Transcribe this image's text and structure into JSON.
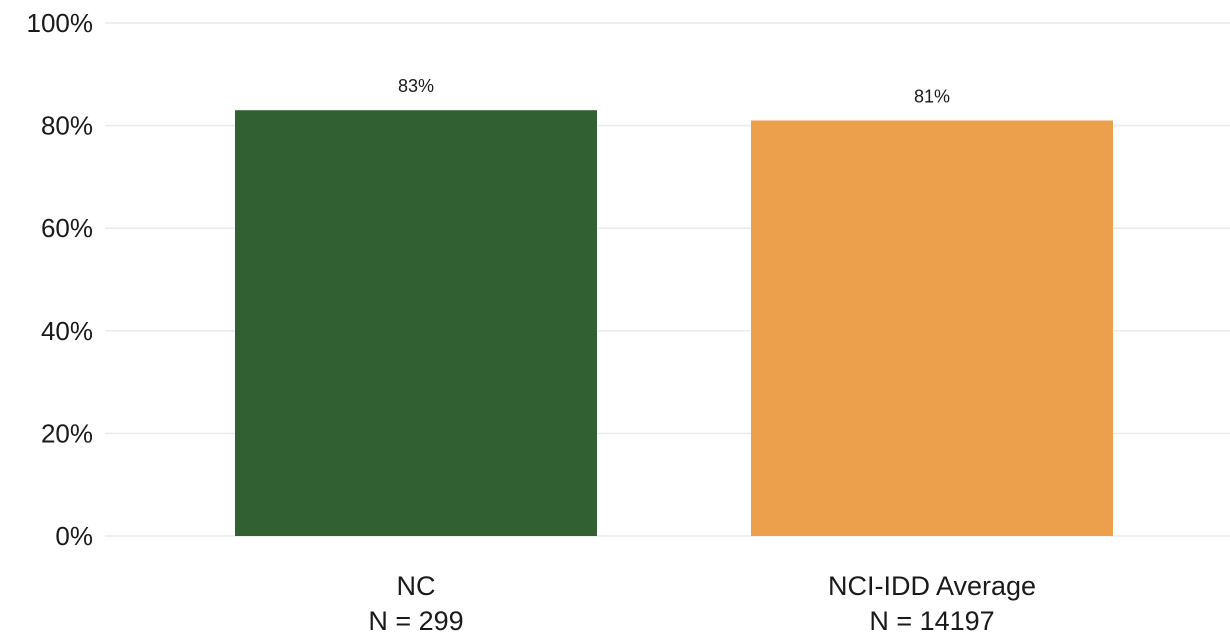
{
  "chart_data": {
    "type": "bar",
    "categories": [
      "NC",
      "NCI-IDD Average"
    ],
    "category_sublabels": [
      "N = 299",
      "N = 14197"
    ],
    "values": [
      83,
      81
    ],
    "data_labels": [
      "83%",
      "81%"
    ],
    "colors": [
      "#316032",
      "#eda04c"
    ],
    "title": "",
    "xlabel": "",
    "ylabel": "",
    "ylim": [
      0,
      100
    ],
    "yticks": [
      0,
      20,
      40,
      60,
      80,
      100
    ],
    "ytick_labels": [
      "0%",
      "20%",
      "40%",
      "60%",
      "80%",
      "100%"
    ],
    "grid": true,
    "legend": "none"
  }
}
